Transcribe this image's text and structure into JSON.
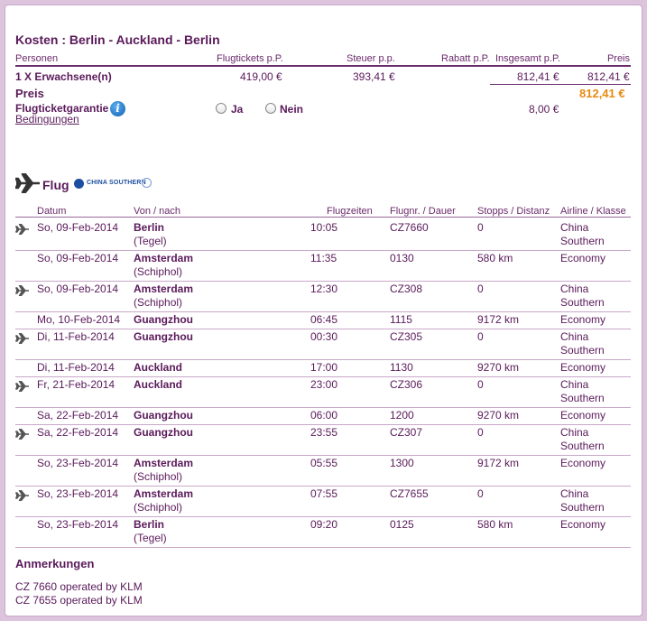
{
  "costs": {
    "title": "Kosten : Berlin - Auckland - Berlin",
    "headers": {
      "persons": "Personen",
      "tickets": "Flugtickets p.P.",
      "tax": "Steuer p.p.",
      "discount": "Rabatt p.P.",
      "total_pp": "Insgesamt p.P.",
      "price": "Preis"
    },
    "row": {
      "persons": "1 X Erwachsene(n)",
      "tickets": "419,00 €",
      "tax": "393,41 €",
      "total_pp": "812,41 €",
      "price": "812,41 €"
    },
    "price_label": "Preis",
    "price_value": "812,41 €",
    "guarantee_label": "Flugticketgarantie",
    "yes_label": "Ja",
    "no_label": "Nein",
    "guarantee_price": "8,00 €",
    "conditions_link": "Bedingungen"
  },
  "flight": {
    "title": "Flug",
    "airline_logo_text": "CHINA SOUTHERN",
    "headers": {
      "date": "Datum",
      "from_to": "Von / nach",
      "times": "Flugzeiten",
      "flight_no": "Flugnr. / Dauer",
      "stops": "Stopps / Distanz",
      "airline": "Airline / Klasse"
    },
    "rows": [
      {
        "icon": true,
        "date": "So, 09-Feb-2014",
        "city": "Berlin",
        "sub": "(Tegel)",
        "time": "10:05",
        "num": "CZ7660",
        "stops": "0",
        "airline": "China",
        "airline2": "Southern"
      },
      {
        "icon": false,
        "date": "So, 09-Feb-2014",
        "city": "Amsterdam",
        "sub": "(Schiphol)",
        "time": "11:35",
        "num": "0130",
        "stops": "580 km",
        "airline": "Economy",
        "airline2": ""
      },
      {
        "icon": true,
        "date": "So, 09-Feb-2014",
        "city": "Amsterdam",
        "sub": "(Schiphol)",
        "time": "12:30",
        "num": "CZ308",
        "stops": "0",
        "airline": "China",
        "airline2": "Southern"
      },
      {
        "icon": false,
        "date": "Mo, 10-Feb-2014",
        "city": "Guangzhou",
        "sub": "",
        "time": "06:45",
        "num": "1115",
        "stops": "9172 km",
        "airline": "Economy",
        "airline2": ""
      },
      {
        "icon": true,
        "date": "Di, 11-Feb-2014",
        "city": "Guangzhou",
        "sub": "",
        "time": "00:30",
        "num": "CZ305",
        "stops": "0",
        "airline": "China",
        "airline2": "Southern"
      },
      {
        "icon": false,
        "date": "Di, 11-Feb-2014",
        "city": "Auckland",
        "sub": "",
        "time": "17:00",
        "num": "1130",
        "stops": "9270 km",
        "airline": "Economy",
        "airline2": ""
      },
      {
        "icon": true,
        "date": "Fr, 21-Feb-2014",
        "city": "Auckland",
        "sub": "",
        "time": "23:00",
        "num": "CZ306",
        "stops": "0",
        "airline": "China",
        "airline2": "Southern"
      },
      {
        "icon": false,
        "date": "Sa, 22-Feb-2014",
        "city": "Guangzhou",
        "sub": "",
        "time": "06:00",
        "num": "1200",
        "stops": "9270 km",
        "airline": "Economy",
        "airline2": ""
      },
      {
        "icon": true,
        "date": "Sa, 22-Feb-2014",
        "city": "Guangzhou",
        "sub": "",
        "time": "23:55",
        "num": "CZ307",
        "stops": "0",
        "airline": "China",
        "airline2": "Southern"
      },
      {
        "icon": false,
        "date": "So, 23-Feb-2014",
        "city": "Amsterdam",
        "sub": "(Schiphol)",
        "time": "05:55",
        "num": "1300",
        "stops": "9172 km",
        "airline": "Economy",
        "airline2": ""
      },
      {
        "icon": true,
        "date": "So, 23-Feb-2014",
        "city": "Amsterdam",
        "sub": "(Schiphol)",
        "time": "07:55",
        "num": "CZ7655",
        "stops": "0",
        "airline": "China",
        "airline2": "Southern"
      },
      {
        "icon": false,
        "date": "So, 23-Feb-2014",
        "city": "Berlin",
        "sub": "(Tegel)",
        "time": "09:20",
        "num": "0125",
        "stops": "580 km",
        "airline": "Economy",
        "airline2": ""
      }
    ]
  },
  "notes": {
    "title": "Anmerkungen",
    "lines": [
      "CZ 7660 operated by KLM",
      "CZ 7655 operated by KLM"
    ]
  },
  "colors": {
    "accent": "#5a1a5a",
    "price_orange": "#e58a12",
    "border": "#c8a8c8",
    "page_bg": "#dcc4dc"
  }
}
